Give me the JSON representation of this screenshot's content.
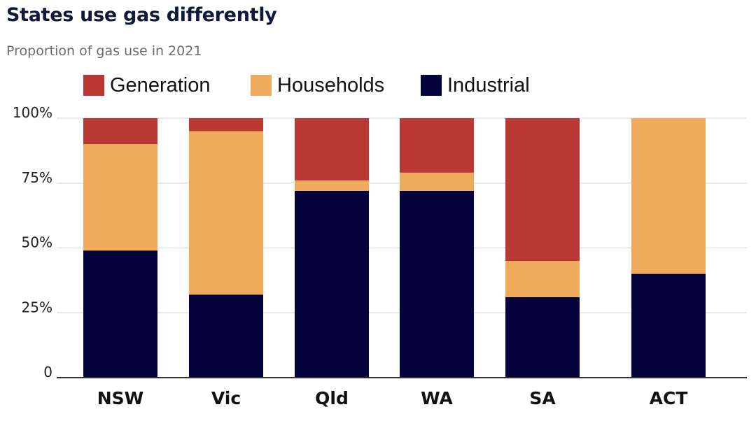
{
  "chart_data": {
    "type": "bar",
    "stacked": true,
    "title": "States use gas differently",
    "subtitle": "Proportion of gas use in 2021",
    "xlabel": "",
    "ylabel": "",
    "ylim": [
      0,
      100
    ],
    "categories": [
      "NSW",
      "Vic",
      "Qld",
      "WA",
      "SA",
      "ACT"
    ],
    "series": [
      {
        "name": "Industrial",
        "color": "#03023a",
        "values": [
          49,
          32,
          72,
          72,
          31,
          40
        ]
      },
      {
        "name": "Households",
        "color": "#efaa5c",
        "values": [
          41,
          63,
          4,
          7,
          14,
          60
        ]
      },
      {
        "name": "Generation",
        "color": "#b93834",
        "values": [
          10,
          5,
          24,
          21,
          55,
          0
        ]
      }
    ],
    "legend_order": [
      "Generation",
      "Households",
      "Industrial"
    ],
    "legend_position": "top-left",
    "yticks": [
      {
        "value": 0,
        "label": "0"
      },
      {
        "value": 25,
        "label": "25%"
      },
      {
        "value": 50,
        "label": "50%"
      },
      {
        "value": 75,
        "label": "75%"
      },
      {
        "value": 100,
        "label": "100%"
      }
    ],
    "grid": true,
    "grid_color": "#dde1ea",
    "axis_color": "#333333"
  }
}
